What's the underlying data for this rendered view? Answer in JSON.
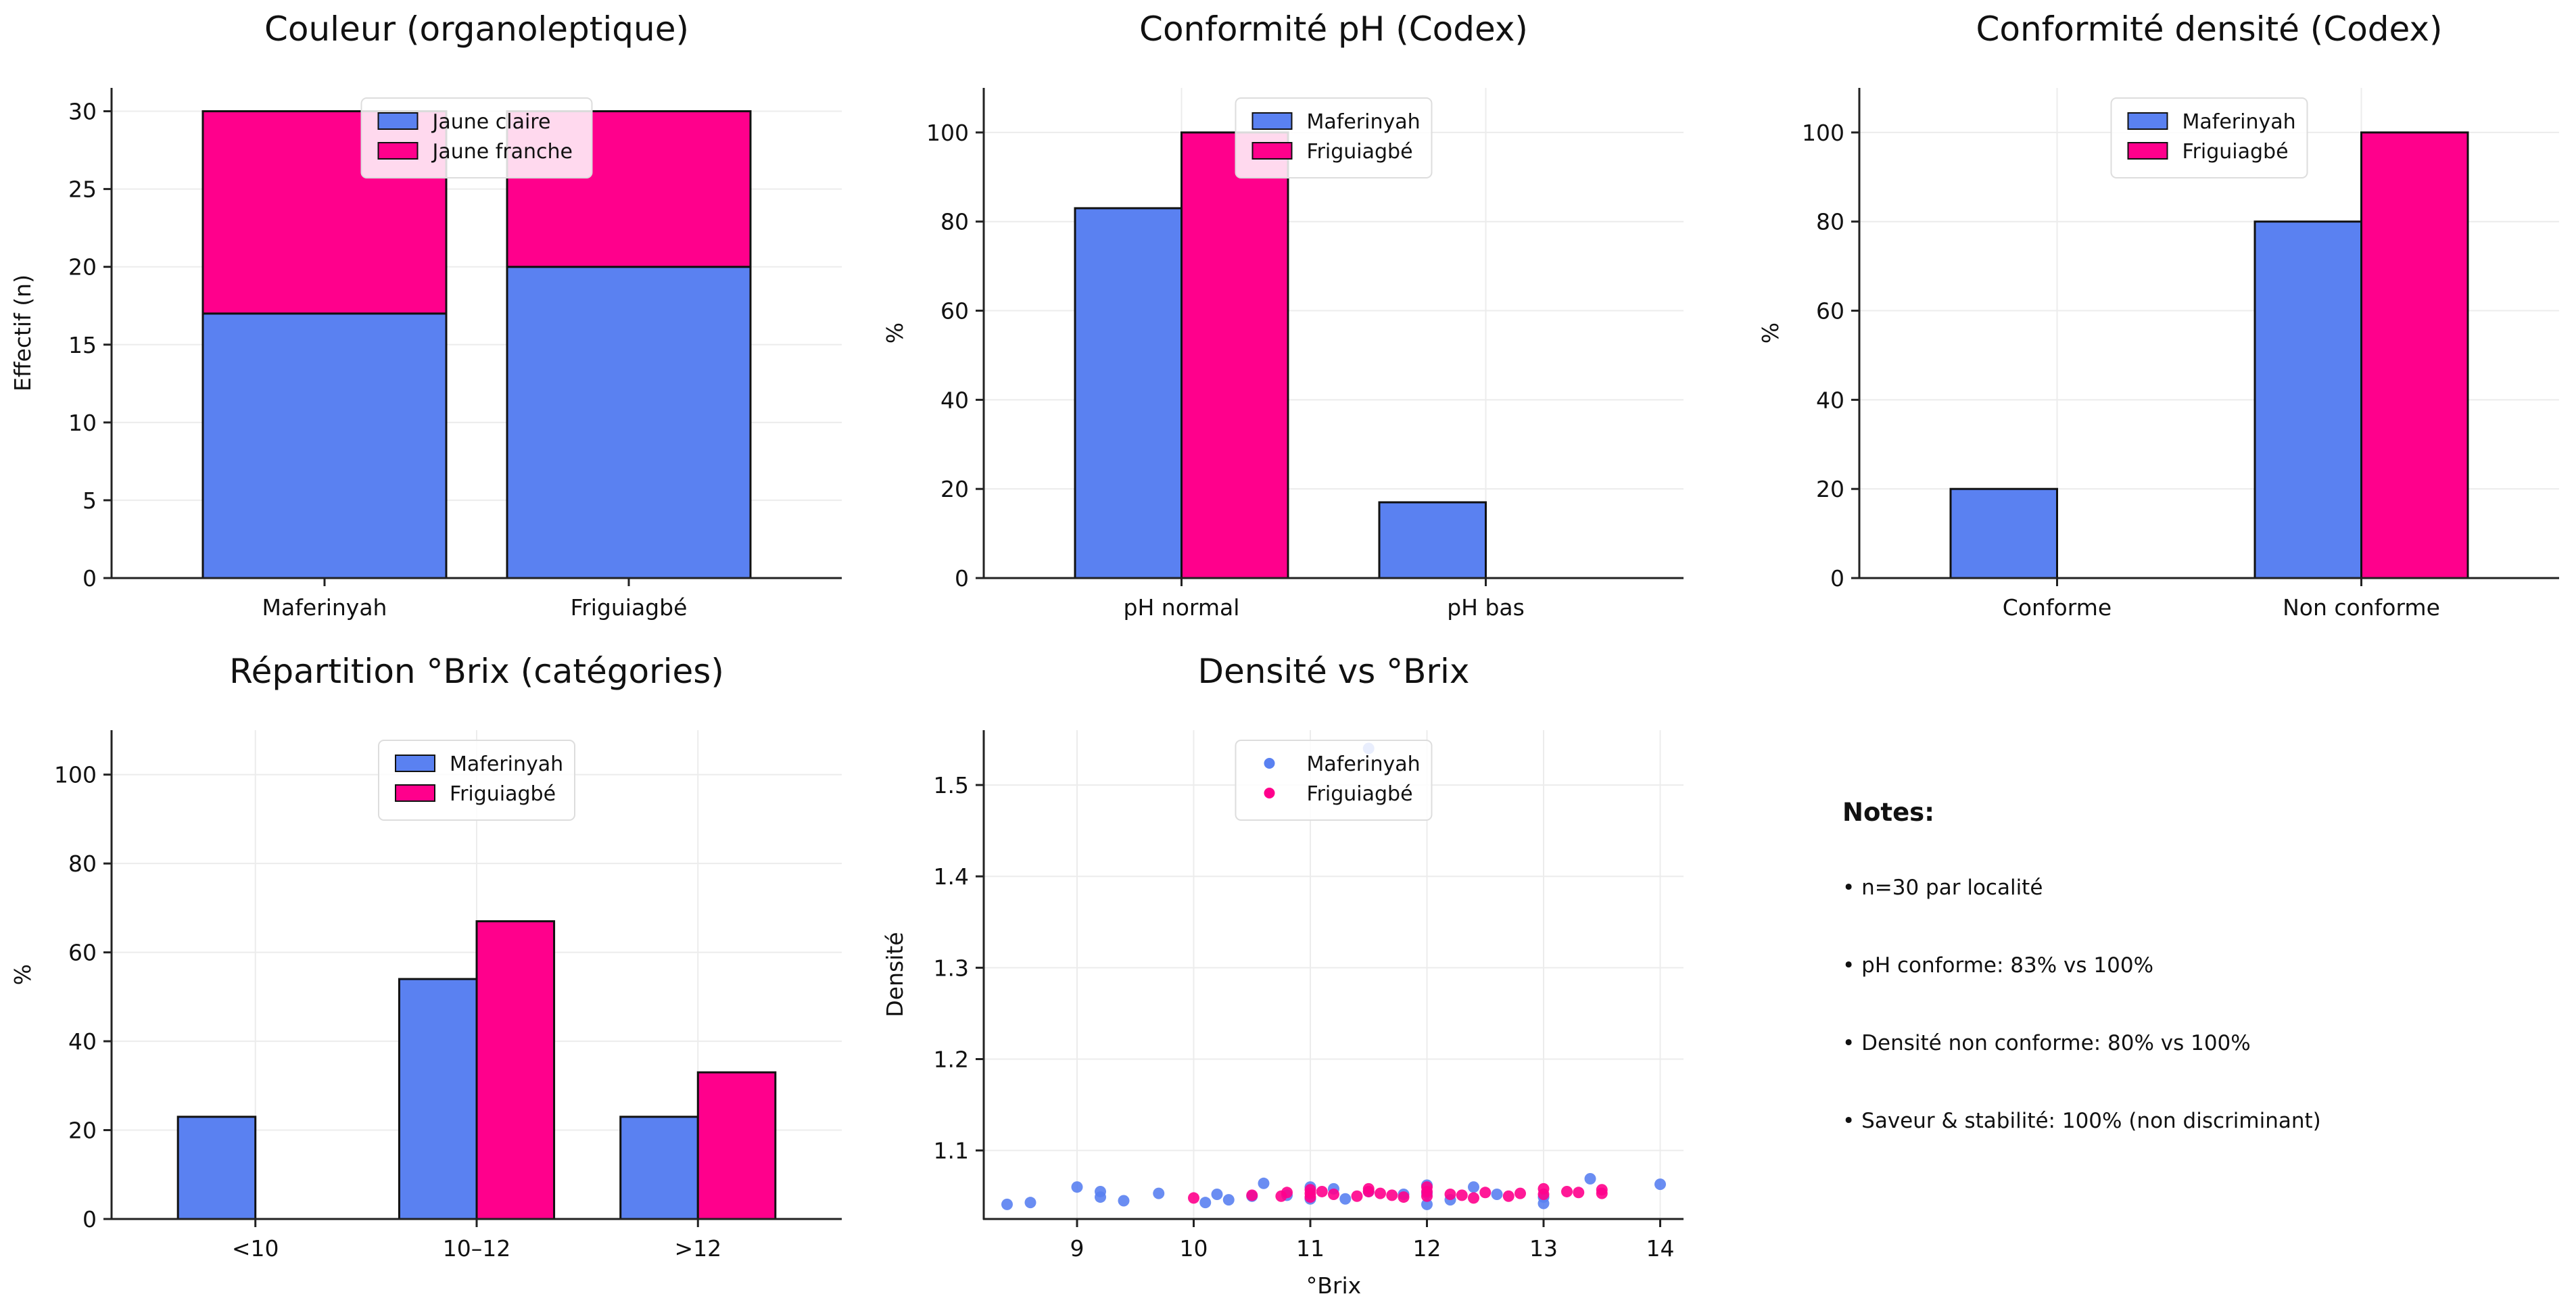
{
  "colors": {
    "maferinyah": "#5a81f1",
    "friguiagbe": "#ff008c",
    "axis": "#222222",
    "grid": "#ececec"
  },
  "chart_data": [
    {
      "id": "couleur",
      "type": "bar",
      "stacked": true,
      "title": "Couleur (organoleptique)",
      "xlabel": "",
      "ylabel": "Effectif (n)",
      "categories": [
        "Maferinyah",
        "Friguiagbé"
      ],
      "series": [
        {
          "name": "Jaune claire",
          "values": [
            17,
            20
          ]
        },
        {
          "name": "Jaune franche",
          "values": [
            13,
            10
          ]
        }
      ],
      "ylim": [
        0,
        31.5
      ],
      "yticks": [
        0,
        5,
        10,
        15,
        20,
        25,
        30
      ],
      "legend": "top-center",
      "grid": true
    },
    {
      "id": "ph",
      "type": "bar",
      "title": "Conformité pH (Codex)",
      "xlabel": "",
      "ylabel": "%",
      "categories": [
        "pH normal",
        "pH bas"
      ],
      "series": [
        {
          "name": "Maferinyah",
          "values": [
            83,
            17
          ]
        },
        {
          "name": "Friguiagbé",
          "values": [
            100,
            0
          ]
        }
      ],
      "ylim": [
        0,
        110
      ],
      "yticks": [
        0,
        20,
        40,
        60,
        80,
        100
      ],
      "legend": "top-center",
      "grid": true
    },
    {
      "id": "densite",
      "type": "bar",
      "title": "Conformité densité (Codex)",
      "xlabel": "",
      "ylabel": "%",
      "categories": [
        "Conforme",
        "Non conforme"
      ],
      "series": [
        {
          "name": "Maferinyah",
          "values": [
            20,
            80
          ]
        },
        {
          "name": "Friguiagbé",
          "values": [
            0,
            100
          ]
        }
      ],
      "ylim": [
        0,
        110
      ],
      "yticks": [
        0,
        20,
        40,
        60,
        80,
        100
      ],
      "legend": "top-center",
      "grid": true
    },
    {
      "id": "brix",
      "type": "bar",
      "title": "Répartition °Brix (catégories)",
      "xlabel": "",
      "ylabel": "%",
      "categories": [
        "<10",
        "10–12",
        ">12"
      ],
      "series": [
        {
          "name": "Maferinyah",
          "values": [
            23,
            54,
            23
          ]
        },
        {
          "name": "Friguiagbé",
          "values": [
            0,
            67,
            33
          ]
        }
      ],
      "ylim": [
        0,
        110
      ],
      "yticks": [
        0,
        20,
        40,
        60,
        80,
        100
      ],
      "legend": "top-center",
      "grid": true
    },
    {
      "id": "scatter",
      "type": "scatter",
      "title": "Densité vs °Brix",
      "xlabel": "°Brix",
      "ylabel": "Densité",
      "xlim": [
        8.2,
        14.2
      ],
      "ylim": [
        1.025,
        1.56
      ],
      "xticks": [
        9,
        10,
        11,
        12,
        13,
        14
      ],
      "yticks": [
        1.1,
        1.2,
        1.3,
        1.4,
        1.5
      ],
      "legend": "top-center",
      "grid": true,
      "series": [
        {
          "name": "Maferinyah",
          "points": [
            [
              8.4,
              1.041
            ],
            [
              8.6,
              1.043
            ],
            [
              9.0,
              1.06
            ],
            [
              9.2,
              1.055
            ],
            [
              9.2,
              1.049
            ],
            [
              9.4,
              1.045
            ],
            [
              9.7,
              1.053
            ],
            [
              10.1,
              1.043
            ],
            [
              10.2,
              1.052
            ],
            [
              10.3,
              1.046
            ],
            [
              10.6,
              1.064
            ],
            [
              10.8,
              1.051
            ],
            [
              11.0,
              1.06
            ],
            [
              11.0,
              1.047
            ],
            [
              11.3,
              1.047
            ],
            [
              11.5,
              1.54
            ],
            [
              11.8,
              1.052
            ],
            [
              12.0,
              1.062
            ],
            [
              12.0,
              1.053
            ],
            [
              12.0,
              1.041
            ],
            [
              12.2,
              1.046
            ],
            [
              12.4,
              1.06
            ],
            [
              13.0,
              1.042
            ],
            [
              13.0,
              1.049
            ],
            [
              13.4,
              1.069
            ],
            [
              14.0,
              1.063
            ],
            [
              11.5,
              1.055
            ],
            [
              10.5,
              1.05
            ],
            [
              12.6,
              1.052
            ],
            [
              11.2,
              1.058
            ]
          ]
        },
        {
          "name": "Friguiagbé",
          "points": [
            [
              10.0,
              1.048
            ],
            [
              10.5,
              1.051
            ],
            [
              10.75,
              1.05
            ],
            [
              10.8,
              1.054
            ],
            [
              11.0,
              1.057
            ],
            [
              11.0,
              1.053
            ],
            [
              11.0,
              1.049
            ],
            [
              11.2,
              1.052
            ],
            [
              11.4,
              1.05
            ],
            [
              11.5,
              1.055
            ],
            [
              11.5,
              1.058
            ],
            [
              11.7,
              1.051
            ],
            [
              11.8,
              1.049
            ],
            [
              12.0,
              1.06
            ],
            [
              12.0,
              1.055
            ],
            [
              12.0,
              1.05
            ],
            [
              12.2,
              1.052
            ],
            [
              12.4,
              1.048
            ],
            [
              12.5,
              1.054
            ],
            [
              12.7,
              1.05
            ],
            [
              12.8,
              1.053
            ],
            [
              13.0,
              1.058
            ],
            [
              13.0,
              1.052
            ],
            [
              13.2,
              1.055
            ],
            [
              13.3,
              1.054
            ],
            [
              13.5,
              1.057
            ],
            [
              13.5,
              1.053
            ],
            [
              11.6,
              1.053
            ],
            [
              12.3,
              1.051
            ],
            [
              11.1,
              1.055
            ]
          ]
        }
      ]
    }
  ],
  "notes": {
    "title": "Notes:",
    "items": [
      "• n=30 par localité",
      "• pH conforme: 83% vs 100%",
      "• Densité non conforme: 80% vs 100%",
      "• Saveur & stabilité: 100% (non discriminant)"
    ]
  }
}
